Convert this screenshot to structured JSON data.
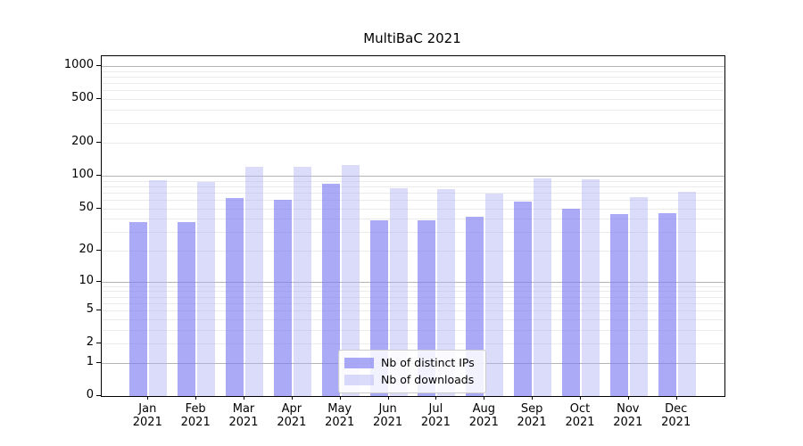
{
  "chart_data": {
    "type": "bar",
    "title": "MultiBaC 2021",
    "categories": [
      "Jan",
      "Feb",
      "Mar",
      "Apr",
      "May",
      "Jun",
      "Jul",
      "Aug",
      "Sep",
      "Oct",
      "Nov",
      "Dec"
    ],
    "category_sublabel": "2021",
    "series": [
      {
        "name": "Nb of distinct IPs",
        "color": "rgba(125,125,242,0.65)",
        "values": [
          37,
          37,
          62,
          60,
          84,
          39,
          39,
          42,
          58,
          50,
          44,
          45
        ]
      },
      {
        "name": "Nb of downloads",
        "color": "rgba(175,175,245,0.45)",
        "values": [
          91,
          87,
          120,
          121,
          126,
          77,
          75,
          68,
          95,
          93,
          63,
          71
        ]
      }
    ],
    "y_axis": {
      "scale": "log1p",
      "tick_labels": [
        0,
        1,
        2,
        5,
        10,
        20,
        50,
        100,
        200,
        500,
        1000
      ],
      "major_gridlines": [
        1,
        10,
        100,
        1000
      ],
      "minor_gridline_decades": [
        1,
        10,
        100
      ],
      "range_max": 1236
    },
    "xlabel": "",
    "ylabel": "",
    "grid": true,
    "legend_position": "lower-center"
  },
  "colors": {
    "major_grid": "#b5b5b5",
    "minor_grid": "#ebebeb",
    "axis": "#000000",
    "legend_border": "#cccccc"
  }
}
